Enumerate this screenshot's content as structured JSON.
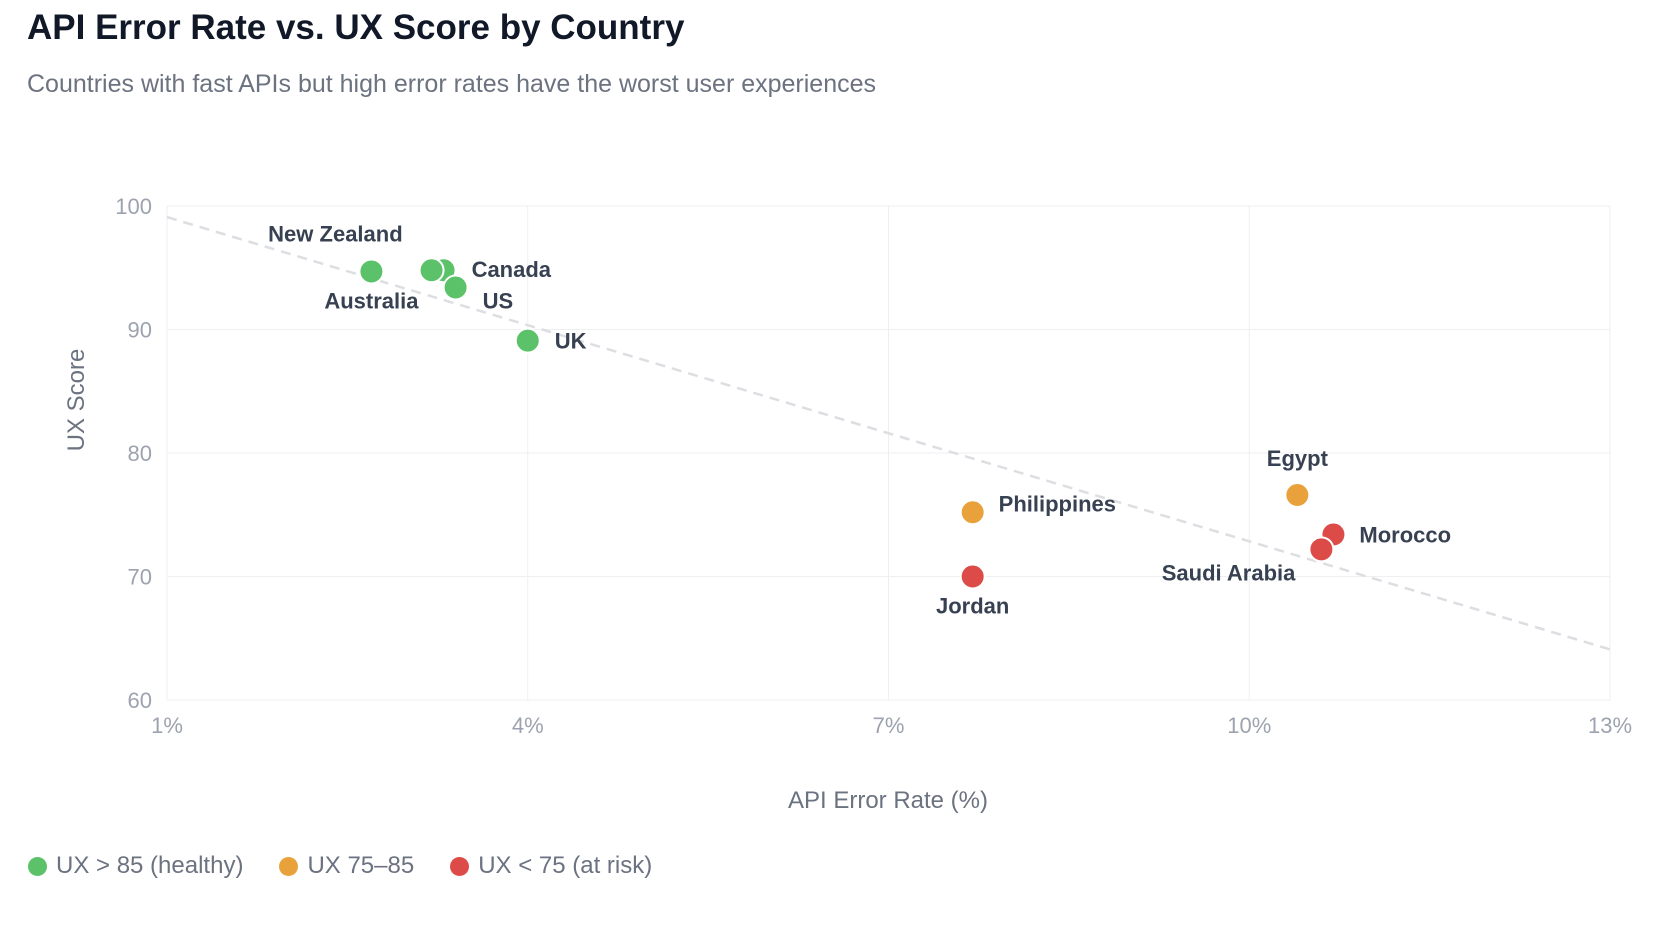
{
  "chart_data": {
    "type": "scatter",
    "title": "API Error Rate vs. UX Score by Country",
    "subtitle": "Countries with fast APIs but high error rates have the worst user experiences",
    "xlabel": "API Error Rate (%)",
    "ylabel": "UX Score",
    "xlim": [
      1,
      13
    ],
    "ylim": [
      60,
      100
    ],
    "x_ticks": [
      1,
      4,
      7,
      10,
      13
    ],
    "x_tick_labels": [
      "1%",
      "4%",
      "7%",
      "10%",
      "13%"
    ],
    "y_ticks": [
      60,
      70,
      80,
      90,
      100
    ],
    "y_tick_labels": [
      "60",
      "70",
      "80",
      "90",
      "100"
    ],
    "grid": true,
    "legend_position": "bottom-left",
    "categories": [
      {
        "key": "healthy",
        "label": "UX > 85 (healthy)",
        "color": "#5cc26a"
      },
      {
        "key": "mid",
        "label": "UX 75–85",
        "color": "#e9a23b"
      },
      {
        "key": "risk",
        "label": "UX < 75 (at risk)",
        "color": "#dc4b48"
      }
    ],
    "points": [
      {
        "label": "New Zealand",
        "x": 2.7,
        "y": 94.7,
        "category": "healthy"
      },
      {
        "label": "Australia",
        "x": 2.7,
        "y": 94.7,
        "category": "healthy"
      },
      {
        "label": "Canada",
        "x": 3.3,
        "y": 94.8,
        "category": "healthy"
      },
      {
        "label": "",
        "x": 3.2,
        "y": 94.8,
        "category": "healthy"
      },
      {
        "label": "US",
        "x": 3.4,
        "y": 93.4,
        "category": "healthy"
      },
      {
        "label": "UK",
        "x": 4.0,
        "y": 89.1,
        "category": "healthy"
      },
      {
        "label": "Philippines",
        "x": 7.7,
        "y": 75.2,
        "category": "mid"
      },
      {
        "label": "Jordan",
        "x": 7.7,
        "y": 70.0,
        "category": "risk"
      },
      {
        "label": "Egypt",
        "x": 10.4,
        "y": 76.6,
        "category": "mid"
      },
      {
        "label": "Morocco",
        "x": 10.7,
        "y": 73.4,
        "category": "risk"
      },
      {
        "label": "Saudi Arabia",
        "x": 10.6,
        "y": 72.2,
        "category": "risk"
      }
    ],
    "trendline": {
      "x": [
        1,
        13
      ],
      "y": [
        99.1,
        64.1
      ]
    }
  }
}
